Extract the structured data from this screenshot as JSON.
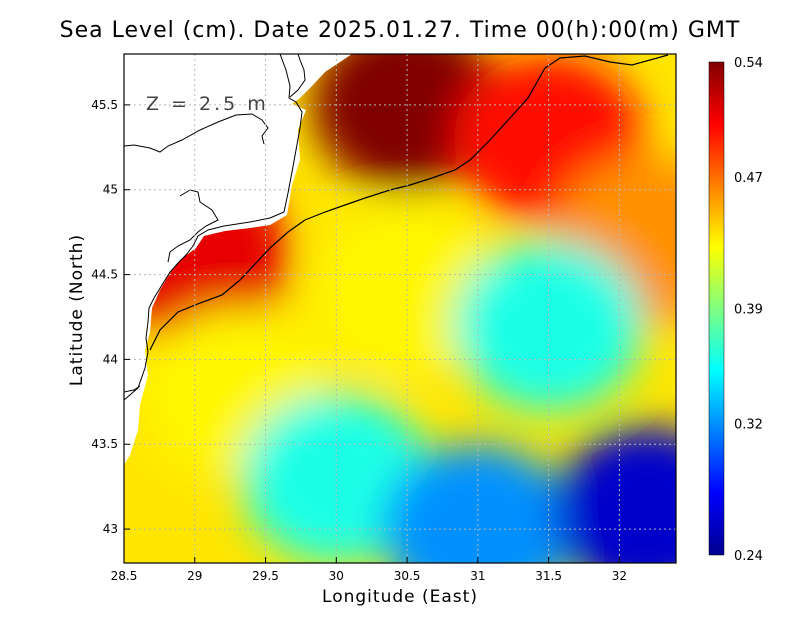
{
  "title": "Sea Level (cm). Date 2025.01.27. Time 00(h):00(m) GMT",
  "depth_label": "Z = 2.5 m",
  "chart_data": {
    "type": "heatmap",
    "title": "Sea Level (cm). Date 2025.01.27. Time 00(h):00(m) GMT",
    "xlabel": "Longitude (East)",
    "ylabel": "Latitude (North)",
    "xlim": [
      28.5,
      32.4
    ],
    "ylim": [
      42.8,
      45.8
    ],
    "x_ticks": [
      28.5,
      29,
      29.5,
      30,
      30.5,
      31,
      31.5,
      32
    ],
    "x_tick_labels": [
      "28.5",
      "29",
      "29.5",
      "30",
      "30.5",
      "31",
      "31.5",
      "32"
    ],
    "y_ticks": [
      43,
      43.5,
      44,
      44.5,
      45,
      45.5
    ],
    "y_tick_labels": [
      "43",
      "43.5",
      "44",
      "44.5",
      "45",
      "45.5"
    ],
    "grid": true,
    "colorbar": {
      "min": 0.24,
      "max": 0.54,
      "ticks": [
        0.54,
        0.47,
        0.39,
        0.32,
        0.24
      ],
      "tick_labels": [
        "0.54",
        "0.47",
        "0.39",
        "0.32",
        "0.24"
      ],
      "colormap": [
        "#00008f",
        "#0000ff",
        "#0080ff",
        "#00ffff",
        "#80ff80",
        "#ffff00",
        "#ff8000",
        "#ff0000",
        "#800000"
      ]
    },
    "annotation": "Z = 2.5 m",
    "field_samples": [
      {
        "lon": 30.5,
        "lat": 45.5,
        "value": 0.54
      },
      {
        "lon": 29.0,
        "lat": 44.6,
        "value": 0.51
      },
      {
        "lon": 31.5,
        "lat": 45.3,
        "value": 0.5
      },
      {
        "lon": 32.2,
        "lat": 44.7,
        "value": 0.46
      },
      {
        "lon": 30.5,
        "lat": 44.4,
        "value": 0.43
      },
      {
        "lon": 29.3,
        "lat": 43.8,
        "value": 0.43
      },
      {
        "lon": 31.5,
        "lat": 44.2,
        "value": 0.36
      },
      {
        "lon": 30.0,
        "lat": 43.3,
        "value": 0.36
      },
      {
        "lon": 31.0,
        "lat": 43.0,
        "value": 0.32
      },
      {
        "lon": 32.2,
        "lat": 43.1,
        "value": 0.26
      }
    ]
  },
  "colors": {
    "land": "#ffffff",
    "coast": "#000000",
    "grid": "#b8b8b8"
  }
}
